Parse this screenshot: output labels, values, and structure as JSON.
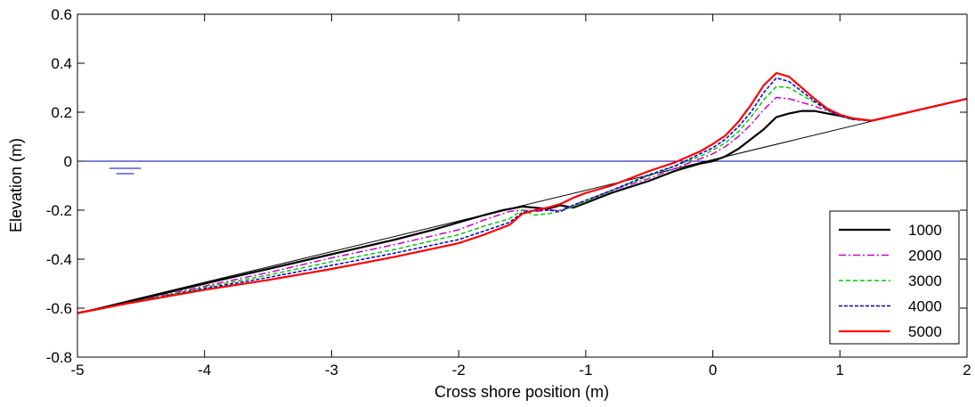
{
  "chart_data": {
    "type": "line",
    "title": "",
    "xlabel": "Cross shore position (m)",
    "ylabel": "Elevation (m)",
    "xlim": [
      -5,
      2
    ],
    "ylim": [
      -0.8,
      0.6
    ],
    "xticks": [
      "-5",
      "-4",
      "-3",
      "-2",
      "-1",
      "0",
      "1",
      "2"
    ],
    "yticks": [
      "-0.8",
      "-0.6",
      "-0.4",
      "-0.2",
      "0",
      "0.2",
      "0.4",
      "0.6"
    ],
    "grid": false,
    "legend_position": "bottom-right",
    "reference_lines": [
      {
        "kind": "water-level",
        "y": 0,
        "color": "#0000aa"
      },
      {
        "kind": "initial-slope",
        "points": [
          [
            -5,
            -0.62
          ],
          [
            1.25,
            0.163
          ],
          [
            2,
            0.255
          ]
        ],
        "color": "#000000"
      }
    ],
    "water_symbol": {
      "x": [
        -4.75,
        -4.5
      ],
      "color": "#0000cc"
    },
    "series": [
      {
        "name": "1000",
        "color": "#000000",
        "dash": "",
        "width": 2.2,
        "x": [
          -5,
          -4.8,
          -4.6,
          -4.0,
          -3.5,
          -3.0,
          -2.5,
          -2.2,
          -2.0,
          -1.8,
          -1.65,
          -1.5,
          -1.4,
          -1.3,
          -1.2,
          -1.1,
          -1.0,
          -0.8,
          -0.5,
          -0.3,
          -0.1,
          0,
          0.1,
          0.2,
          0.3,
          0.4,
          0.5,
          0.6,
          0.7,
          0.8,
          0.9,
          1.0,
          1.1,
          1.25,
          1.5,
          2.0
        ],
        "y": [
          -0.62,
          -0.6,
          -0.575,
          -0.5,
          -0.44,
          -0.38,
          -0.32,
          -0.28,
          -0.25,
          -0.22,
          -0.2,
          -0.185,
          -0.19,
          -0.195,
          -0.18,
          -0.19,
          -0.17,
          -0.13,
          -0.08,
          -0.04,
          -0.01,
          0.0,
          0.02,
          0.05,
          0.09,
          0.13,
          0.18,
          0.195,
          0.205,
          0.205,
          0.195,
          0.185,
          0.175,
          0.165,
          0.195,
          0.255
        ]
      },
      {
        "name": "2000",
        "color": "#cc00cc",
        "dash": "8,3,2,3",
        "width": 1.5,
        "x": [
          -5,
          -4.8,
          -4.6,
          -4.0,
          -3.5,
          -3.0,
          -2.5,
          -2.0,
          -1.8,
          -1.6,
          -1.5,
          -1.4,
          -1.3,
          -1.2,
          -1.1,
          -1.0,
          -0.8,
          -0.5,
          -0.3,
          -0.1,
          0,
          0.1,
          0.2,
          0.3,
          0.4,
          0.5,
          0.6,
          0.7,
          0.8,
          0.9,
          1.0,
          1.1,
          1.25,
          1.5,
          2.0
        ],
        "y": [
          -0.62,
          -0.6,
          -0.58,
          -0.51,
          -0.455,
          -0.395,
          -0.34,
          -0.28,
          -0.24,
          -0.205,
          -0.2,
          -0.205,
          -0.2,
          -0.2,
          -0.18,
          -0.16,
          -0.12,
          -0.07,
          -0.03,
          0.01,
          0.03,
          0.06,
          0.1,
          0.15,
          0.21,
          0.26,
          0.255,
          0.24,
          0.225,
          0.205,
          0.19,
          0.175,
          0.165,
          0.195,
          0.255
        ]
      },
      {
        "name": "3000",
        "color": "#00cc00",
        "dash": "5,3",
        "width": 1.5,
        "x": [
          -5,
          -4.8,
          -4.6,
          -4.0,
          -3.5,
          -3.0,
          -2.5,
          -2.0,
          -1.8,
          -1.6,
          -1.5,
          -1.4,
          -1.3,
          -1.2,
          -1.1,
          -1.0,
          -0.8,
          -0.5,
          -0.3,
          -0.1,
          0,
          0.1,
          0.2,
          0.3,
          0.4,
          0.5,
          0.6,
          0.7,
          0.8,
          0.9,
          1.0,
          1.1,
          1.25,
          1.5,
          2.0
        ],
        "y": [
          -0.62,
          -0.6,
          -0.58,
          -0.515,
          -0.465,
          -0.41,
          -0.36,
          -0.3,
          -0.265,
          -0.235,
          -0.2,
          -0.22,
          -0.215,
          -0.205,
          -0.185,
          -0.165,
          -0.12,
          -0.06,
          -0.02,
          0.02,
          0.045,
          0.075,
          0.12,
          0.18,
          0.25,
          0.305,
          0.3,
          0.27,
          0.24,
          0.21,
          0.185,
          0.17,
          0.165,
          0.195,
          0.255
        ]
      },
      {
        "name": "4000",
        "color": "#0000cc",
        "dash": "4,2",
        "width": 1.5,
        "x": [
          -5,
          -4.8,
          -4.6,
          -4.0,
          -3.5,
          -3.0,
          -2.5,
          -2.0,
          -1.8,
          -1.6,
          -1.5,
          -1.4,
          -1.3,
          -1.2,
          -1.1,
          -1.0,
          -0.8,
          -0.5,
          -0.3,
          -0.1,
          0,
          0.1,
          0.2,
          0.3,
          0.4,
          0.5,
          0.6,
          0.7,
          0.8,
          0.9,
          1.0,
          1.1,
          1.25,
          1.5,
          2.0
        ],
        "y": [
          -0.62,
          -0.6,
          -0.58,
          -0.52,
          -0.475,
          -0.425,
          -0.375,
          -0.32,
          -0.285,
          -0.25,
          -0.21,
          -0.2,
          -0.2,
          -0.205,
          -0.18,
          -0.16,
          -0.12,
          -0.055,
          -0.02,
          0.03,
          0.055,
          0.09,
          0.14,
          0.2,
          0.28,
          0.34,
          0.325,
          0.285,
          0.245,
          0.21,
          0.185,
          0.17,
          0.165,
          0.195,
          0.255
        ]
      },
      {
        "name": "5000",
        "color": "#ff0000",
        "dash": "",
        "width": 2.2,
        "x": [
          -5,
          -4.8,
          -4.6,
          -4.0,
          -3.5,
          -3.0,
          -2.5,
          -2.0,
          -1.8,
          -1.6,
          -1.5,
          -1.4,
          -1.3,
          -1.2,
          -1.1,
          -1.0,
          -0.8,
          -0.5,
          -0.3,
          -0.1,
          0,
          0.1,
          0.2,
          0.3,
          0.4,
          0.5,
          0.6,
          0.7,
          0.8,
          0.9,
          1.0,
          1.1,
          1.25,
          1.5,
          2.0
        ],
        "y": [
          -0.62,
          -0.6,
          -0.58,
          -0.525,
          -0.485,
          -0.44,
          -0.39,
          -0.335,
          -0.3,
          -0.26,
          -0.215,
          -0.2,
          -0.19,
          -0.175,
          -0.15,
          -0.13,
          -0.1,
          -0.04,
          -0.005,
          0.04,
          0.07,
          0.105,
          0.16,
          0.23,
          0.31,
          0.36,
          0.345,
          0.3,
          0.255,
          0.215,
          0.19,
          0.175,
          0.165,
          0.195,
          0.255
        ]
      }
    ]
  }
}
